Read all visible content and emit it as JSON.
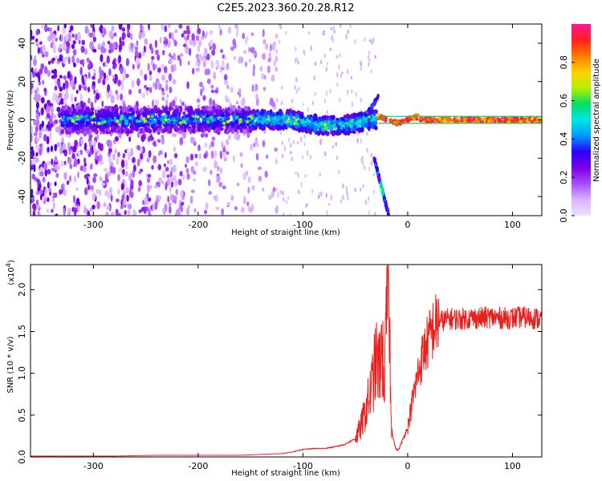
{
  "title": "C2E5.2023.360.20.28.R12",
  "chart_data": [
    {
      "type": "heatmap",
      "xlabel": "Height of straight line (km)",
      "ylabel": "Frequency (Hz)",
      "xlim": [
        -360,
        128
      ],
      "ylim": [
        -50,
        50
      ],
      "xticks": [
        -300,
        -200,
        -100,
        0,
        100
      ],
      "xtick_labels": [
        "-300",
        "-200",
        "-100",
        "0",
        "100"
      ],
      "yticks": [
        -40,
        -20,
        0,
        20,
        40
      ],
      "ytick_labels": [
        "-40",
        "-20",
        "0",
        "20",
        "40"
      ],
      "colorbar": {
        "label": "Normalized spectral amplitude",
        "range": [
          0,
          1
        ],
        "ticks": [
          "0.0",
          "0.2",
          "0.4",
          "0.6",
          "0.8"
        ],
        "colors": [
          "#f0e0ff",
          "#d9b3ff",
          "#a64dff",
          "#7a00e6",
          "#2a00ff",
          "#0099ff",
          "#00e5e5",
          "#00e060",
          "#b6f000",
          "#ffd000",
          "#ff7a00",
          "#ff2020",
          "#ff1493"
        ]
      },
      "features": {
        "main_band_center_hz": 0,
        "branch_from_km": -32,
        "branch_to_km": -18,
        "branch_from_hz": -20,
        "branch_to_hz": -50
      }
    },
    {
      "type": "line",
      "xlabel": "Height of straight line (km)",
      "ylabel": "SNR (10 * v/v)",
      "multiplier_label": "(x10",
      "multiplier_exp": "4",
      "multiplier_close": ")",
      "xlim": [
        -360,
        128
      ],
      "ylim": [
        0,
        2.3
      ],
      "xticks": [
        -300,
        -200,
        -100,
        0,
        100
      ],
      "xtick_labels": [
        "-300",
        "-200",
        "-100",
        "0",
        "100"
      ],
      "yticks": [
        0,
        0.5,
        1.0,
        1.5,
        2.0
      ],
      "ytick_labels": [
        "0.0",
        "0.5",
        "1.0",
        "1.5",
        "2.0"
      ],
      "series": [
        {
          "color": "#e8211d",
          "x": [
            -360,
            -320,
            -280,
            -240,
            -200,
            -160,
            -140,
            -120,
            -110,
            -100,
            -90,
            -80,
            -70,
            -60,
            -50,
            -45,
            -40,
            -35,
            -30,
            -27,
            -25,
            -22,
            -20,
            -18,
            -16,
            -14,
            -12,
            -10,
            -8,
            -5,
            0,
            5,
            10,
            15,
            20,
            25,
            30,
            40,
            50,
            60,
            70,
            80,
            90,
            100,
            110,
            120,
            128
          ],
          "values": [
            0.01,
            0.01,
            0.01,
            0.02,
            0.02,
            0.02,
            0.03,
            0.04,
            0.06,
            0.09,
            0.1,
            0.1,
            0.12,
            0.15,
            0.22,
            0.35,
            0.55,
            0.8,
            1.15,
            1.05,
            1.35,
            0.9,
            1.7,
            2.3,
            0.45,
            0.25,
            0.12,
            0.08,
            0.1,
            0.2,
            0.35,
            0.7,
            1.0,
            1.25,
            1.4,
            1.55,
            1.62,
            1.65,
            1.65,
            1.66,
            1.66,
            1.67,
            1.66,
            1.66,
            1.67,
            1.66,
            1.65
          ]
        }
      ]
    }
  ]
}
